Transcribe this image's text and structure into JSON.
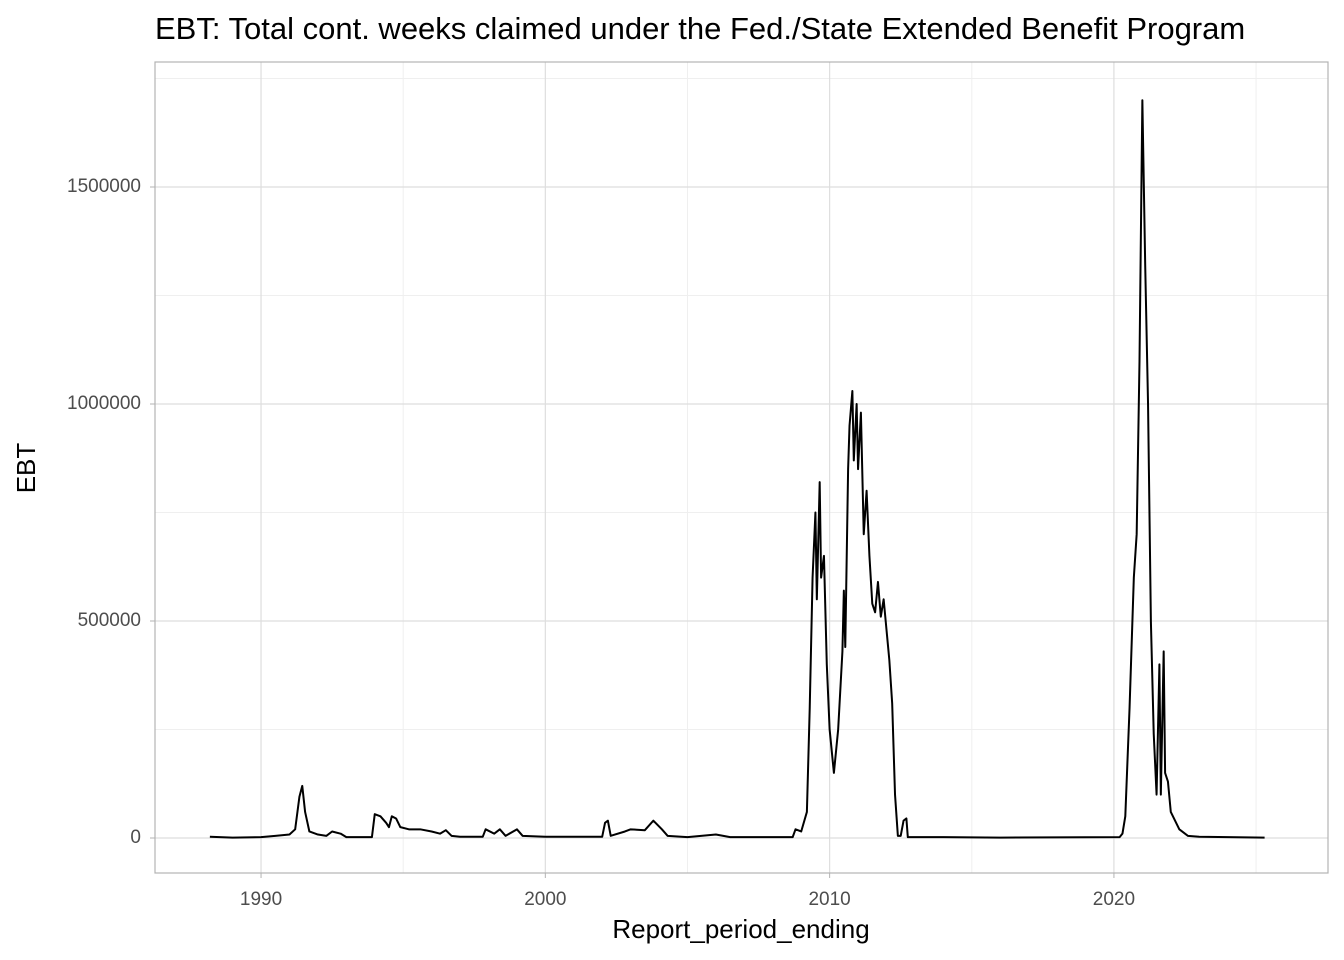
{
  "chart_data": {
    "type": "line",
    "title": "EBT: Total cont. weeks claimed under the Fed./State Extended Benefit Program",
    "x_label": "Report_period_ending",
    "y_label": "EBT",
    "x": [
      1988.2,
      1989.0,
      1990.0,
      1990.5,
      1991.0,
      1991.2,
      1991.35,
      1991.45,
      1991.55,
      1991.7,
      1992.0,
      1992.3,
      1992.5,
      1992.8,
      1993.0,
      1993.9,
      1994.0,
      1994.2,
      1994.4,
      1994.5,
      1994.6,
      1994.75,
      1994.9,
      1995.2,
      1995.6,
      1996.0,
      1996.3,
      1996.5,
      1996.7,
      1997.0,
      1997.8,
      1997.9,
      1998.2,
      1998.4,
      1998.6,
      1999.0,
      1999.2,
      2000.0,
      2002.0,
      2002.1,
      2002.2,
      2002.3,
      2002.8,
      2003.0,
      2003.5,
      2003.8,
      2004.1,
      2004.3,
      2005.0,
      2006.0,
      2006.5,
      2008.7,
      2008.8,
      2009.0,
      2009.2,
      2009.3,
      2009.4,
      2009.5,
      2009.55,
      2009.65,
      2009.7,
      2009.8,
      2009.9,
      2010.0,
      2010.15,
      2010.3,
      2010.45,
      2010.5,
      2010.55,
      2010.65,
      2010.7,
      2010.8,
      2010.85,
      2010.95,
      2011.0,
      2011.1,
      2011.2,
      2011.3,
      2011.4,
      2011.5,
      2011.6,
      2011.7,
      2011.8,
      2011.9,
      2012.0,
      2012.1,
      2012.2,
      2012.3,
      2012.4,
      2012.5,
      2012.6,
      2012.7,
      2012.75,
      2014.0,
      2016.0,
      2020.2,
      2020.3,
      2020.4,
      2020.55,
      2020.7,
      2020.8,
      2020.9,
      2021.0,
      2021.1,
      2021.2,
      2021.3,
      2021.4,
      2021.5,
      2021.6,
      2021.65,
      2021.75,
      2021.8,
      2021.9,
      2022.0,
      2022.3,
      2022.6,
      2023.0,
      2024.0,
      2025.3
    ],
    "values": [
      3000,
      1000,
      2000,
      5000,
      8000,
      20000,
      95000,
      120000,
      60000,
      15000,
      8000,
      5000,
      15000,
      10000,
      2000,
      2000,
      55000,
      50000,
      35000,
      25000,
      50000,
      45000,
      25000,
      20000,
      20000,
      15000,
      10000,
      18000,
      5000,
      3000,
      3000,
      20000,
      10000,
      20000,
      5000,
      20000,
      5000,
      3000,
      3000,
      35000,
      40000,
      5000,
      15000,
      20000,
      18000,
      40000,
      20000,
      5000,
      2000,
      8000,
      2000,
      2000,
      20000,
      15000,
      60000,
      300000,
      600000,
      750000,
      550000,
      820000,
      600000,
      650000,
      400000,
      250000,
      150000,
      250000,
      430000,
      570000,
      440000,
      850000,
      950000,
      1030000,
      870000,
      1000000,
      850000,
      980000,
      700000,
      800000,
      650000,
      540000,
      520000,
      590000,
      510000,
      550000,
      480000,
      410000,
      310000,
      100000,
      5000,
      5000,
      40000,
      45000,
      2000,
      2000,
      1000,
      2000,
      10000,
      50000,
      300000,
      600000,
      700000,
      1100000,
      1700000,
      1320000,
      1000000,
      500000,
      240000,
      100000,
      400000,
      100000,
      430000,
      150000,
      130000,
      60000,
      20000,
      5000,
      3000,
      2000,
      1000
    ],
    "color": "#000000",
    "xlim": [
      1986.27,
      2027.53
    ],
    "xticks": [
      1990,
      2000,
      2010,
      2020
    ],
    "xminor": [
      1995,
      2005,
      2015,
      2025
    ],
    "ylim": [
      -80645,
      1788018
    ],
    "yticks": [
      0,
      500000,
      1000000,
      1500000
    ],
    "yminor": [
      250000,
      750000,
      1250000,
      1750000
    ],
    "grid": true
  }
}
